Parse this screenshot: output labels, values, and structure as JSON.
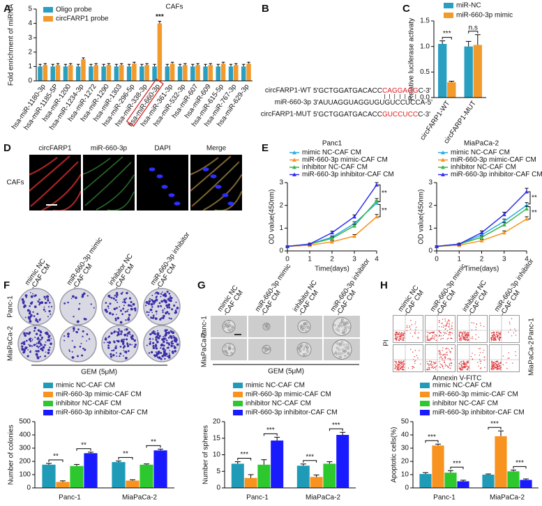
{
  "panel_labels": [
    "A",
    "B",
    "C",
    "D",
    "E",
    "F",
    "G",
    "H"
  ],
  "chart_data": [
    {
      "type": "bar",
      "title": "CAFs",
      "y_label": "Fold enrichment of miRNA",
      "categories": [
        "hsa-miR-1180-3p",
        "hsa-miR-1185-5P",
        "hsa-miR-1200",
        "hsa-miR-1234-3p",
        "hsa-miR-1272",
        "hsa-miR-1290",
        "hsa-miR-1303",
        "hsa-miR-296-5p",
        "hsa-miR-338-3p",
        "hsa-miR-660-3p",
        "hsa-miR-361-3p",
        "hsa-miR-532-3p",
        "hsa-miR-607",
        "hsa-miR-609",
        "hsa-miR-615-5p",
        "hsa-miR-767-3p",
        "hsa-miR-629-3p"
      ],
      "series": [
        {
          "name": "Oligo probe",
          "color": "#2a9fc0",
          "values": [
            1.0,
            1.0,
            1.0,
            1.0,
            1.0,
            1.0,
            1.0,
            1.0,
            1.0,
            1.0,
            1.0,
            1.0,
            1.0,
            1.0,
            1.0,
            1.0,
            1.0
          ],
          "errors": [
            0.15,
            0.15,
            0.15,
            0.15,
            0.15,
            0.15,
            0.15,
            0.15,
            0.15,
            0.15,
            0.15,
            0.15,
            0.15,
            0.15,
            0.15,
            0.15,
            0.15
          ]
        },
        {
          "name": "circFARP1 probe",
          "color": "#f39a2c",
          "values": [
            1.1,
            1.1,
            1.1,
            1.5,
            1.1,
            1.1,
            1.1,
            1.2,
            1.1,
            4.0,
            1.2,
            1.1,
            1.1,
            1.1,
            1.2,
            1.1,
            1.2
          ],
          "errors": [
            0.1,
            0.1,
            0.1,
            0.1,
            0.1,
            0.1,
            0.1,
            0.1,
            0.1,
            0.15,
            0.1,
            0.1,
            0.1,
            0.1,
            0.1,
            0.1,
            0.1
          ]
        }
      ],
      "ylim": [
        0,
        5
      ],
      "yticks": [
        0,
        1,
        2,
        3,
        4,
        5
      ],
      "annotations": [
        "***"
      ]
    },
    {
      "type": "bar",
      "y_label": "Relative luciferase activaty",
      "categories": [
        "circFARP1-WT",
        "circFARP1-MUT"
      ],
      "series": [
        {
          "name": "miR-NC",
          "color": "#2a9fc0",
          "values": [
            1.05,
            1.0
          ],
          "errors": [
            0.06,
            0.1
          ]
        },
        {
          "name": "miR-660-3p mimic",
          "color": "#f39a2c",
          "values": [
            0.3,
            1.03
          ],
          "errors": [
            0.02,
            0.2
          ]
        }
      ],
      "ylim": [
        0,
        1.5
      ],
      "yticks": [
        {
          "value": 0,
          "label": "0.0"
        },
        {
          "value": 0.5,
          "label": "0.5"
        },
        {
          "value": 1,
          "label": "1.0"
        },
        {
          "value": 1.5,
          "label": "1.5"
        }
      ],
      "annotations": [
        "***",
        "n.s"
      ]
    },
    {
      "type": "line",
      "title": "Panc1",
      "x_label": "Time(days)",
      "y_label": "OD value(450nm)",
      "x": [
        0,
        1,
        2,
        3,
        4
      ],
      "xlim": [
        0,
        4
      ],
      "xticks": [
        0,
        1,
        2,
        3,
        4
      ],
      "ylim": [
        0,
        3
      ],
      "yticks": [
        0,
        1,
        2,
        3
      ],
      "series": [
        {
          "name": "mimic NC-CAF CM",
          "color": "#29abe2",
          "values": [
            0.2,
            0.3,
            0.6,
            1.2,
            2.1
          ],
          "errors": [
            0.02,
            0.03,
            0.06,
            0.08,
            0.1
          ]
        },
        {
          "name": "miR-660-3p mimic-CAF CM",
          "color": "#f7931e",
          "values": [
            0.2,
            0.25,
            0.4,
            0.65,
            1.5
          ],
          "errors": [
            0.02,
            0.03,
            0.05,
            0.07,
            0.1
          ]
        },
        {
          "name": "inhibitor NC-CAF CM",
          "color": "#39b54a",
          "values": [
            0.2,
            0.3,
            0.55,
            1.1,
            2.2
          ],
          "errors": [
            0.02,
            0.03,
            0.06,
            0.08,
            0.1
          ]
        },
        {
          "name": "miR-660-3p inhibitor-CAF CM",
          "color": "#2d2df0",
          "values": [
            0.2,
            0.3,
            0.8,
            1.5,
            2.9
          ],
          "errors": [
            0.02,
            0.03,
            0.07,
            0.08,
            0.1
          ]
        }
      ],
      "annotations": [
        "**",
        "**"
      ]
    },
    {
      "type": "line",
      "title": "MiaPaCa-2",
      "x_label": "Time(days)",
      "y_label": "OD value(450nm)",
      "x": [
        0,
        1,
        2,
        3,
        4
      ],
      "xlim": [
        0,
        4
      ],
      "xticks": [
        0,
        1,
        2,
        3,
        4
      ],
      "ylim": [
        0,
        3
      ],
      "yticks": [
        0,
        1,
        2,
        3
      ],
      "series": [
        {
          "name": "mimic NC-CAF CM",
          "color": "#29abe2",
          "values": [
            0.2,
            0.3,
            0.7,
            1.3,
            2.0
          ],
          "errors": [
            0.02,
            0.03,
            0.07,
            0.1,
            0.12
          ]
        },
        {
          "name": "miR-660-3p mimic-CAF CM",
          "color": "#f7931e",
          "values": [
            0.2,
            0.25,
            0.45,
            0.8,
            1.4
          ],
          "errors": [
            0.02,
            0.03,
            0.05,
            0.08,
            0.1
          ]
        },
        {
          "name": "inhibitor NC-CAF CM",
          "color": "#39b54a",
          "values": [
            0.2,
            0.3,
            0.6,
            1.15,
            1.85
          ],
          "errors": [
            0.02,
            0.03,
            0.06,
            0.1,
            0.12
          ]
        },
        {
          "name": "miR-660-3p inhibitor-CAF CM",
          "color": "#2d2df0",
          "values": [
            0.2,
            0.3,
            0.8,
            1.6,
            2.6
          ],
          "errors": [
            0.02,
            0.03,
            0.08,
            0.1,
            0.15
          ]
        }
      ],
      "annotations": [
        "**",
        "**"
      ]
    },
    {
      "type": "bar",
      "y_label": "Number of colonies",
      "categories": [
        "Panc-1",
        "MiaPaCa-2"
      ],
      "series": [
        {
          "name": "mimic NC-CAF CM",
          "color": "#1f9bb8",
          "values": [
            175,
            195
          ],
          "errors": [
            10,
            8
          ]
        },
        {
          "name": "miR-660-3p mimic-CAF CM",
          "color": "#f7931e",
          "values": [
            45,
            55
          ],
          "errors": [
            8,
            6
          ]
        },
        {
          "name": "inhibitor NC-CAF CM",
          "color": "#2dc82d",
          "values": [
            165,
            175
          ],
          "errors": [
            12,
            6
          ]
        },
        {
          "name": "miR-660-3p inhibitor-CAF CM",
          "color": "#1a1aff",
          "values": [
            262,
            283
          ],
          "errors": [
            8,
            10
          ]
        }
      ],
      "ylim": [
        0,
        500
      ],
      "yticks": [
        0,
        100,
        200,
        300,
        400,
        500
      ],
      "annotations": [
        "**",
        "**",
        "**",
        "**"
      ]
    },
    {
      "type": "bar",
      "y_label": "Number of spheres",
      "categories": [
        "Panc-1",
        "MiaPaCa-2"
      ],
      "series": [
        {
          "name": "mimic NC-CAF CM",
          "color": "#1f9bb8",
          "values": [
            7.3,
            6.7
          ],
          "errors": [
            0.6,
            0.5
          ]
        },
        {
          "name": "miR-660-3p mimic-CAF CM",
          "color": "#f7931e",
          "values": [
            3,
            3.3
          ],
          "errors": [
            1,
            0.6
          ]
        },
        {
          "name": "inhibitor NC-CAF CM",
          "color": "#2dc82d",
          "values": [
            7,
            7.3
          ],
          "errors": [
            1.5,
            0.6
          ]
        },
        {
          "name": "miR-660-3p inhibitor-CAF CM",
          "color": "#1a1aff",
          "values": [
            14.3,
            16
          ],
          "errors": [
            1,
            0.8
          ]
        }
      ],
      "ylim": [
        0,
        20
      ],
      "yticks": [
        0,
        5,
        10,
        15,
        20
      ],
      "annotations": [
        "***",
        "***",
        "***",
        "***"
      ]
    },
    {
      "type": "bar",
      "y_label": "Apoptotic cells(%)",
      "categories": [
        "Panc-1",
        "MiaPaCa-2"
      ],
      "series": [
        {
          "name": "mimic NC-CAF CM",
          "color": "#1f9bb8",
          "values": [
            10.5,
            10
          ],
          "errors": [
            1,
            0.5
          ]
        },
        {
          "name": "miR-660-3p mimic-CAF CM",
          "color": "#f7931e",
          "values": [
            32,
            39
          ],
          "errors": [
            1,
            4
          ]
        },
        {
          "name": "inhibitor NC-CAF CM",
          "color": "#2dc82d",
          "values": [
            11.5,
            12.5
          ],
          "errors": [
            1.5,
            1
          ]
        },
        {
          "name": "miR-660-3p inhibitor-CAF CM",
          "color": "#1a1aff",
          "values": [
            5,
            6
          ],
          "errors": [
            0.8,
            0.8
          ]
        }
      ],
      "ylim": [
        0,
        50
      ],
      "yticks": [
        0,
        10,
        20,
        30,
        40,
        50
      ],
      "annotations": [
        "***",
        "***",
        "***",
        "***"
      ]
    }
  ],
  "sequences": [
    {
      "name": "circFARP1-WT",
      "seq": [
        "5'GCTGGATGACACC",
        "CAGGAGG",
        "C-3'"
      ]
    },
    {
      "name": "miR-660-3p",
      "seq": [
        "3'AUUAGGUAGGUGUGUCCUCCA-5'"
      ]
    },
    {
      "name": "circFARP1-MUT",
      "seq": [
        "5'GCTGGATGACACC",
        "GUCCUCC",
        "C-3'"
      ]
    }
  ],
  "microscopy": {
    "channels": [
      "circFARP1",
      "miR-660-3p",
      "DAPI",
      "Merge"
    ],
    "row": "CAFs"
  },
  "colony_assay": {
    "conditions": [
      [
        "mimic NC",
        "-CAF CM"
      ],
      [
        "miR-660-3p mimic",
        "-CAF CM"
      ],
      [
        "inhibitor NC",
        "-CAF CM"
      ],
      [
        "miR-660-3p inhibitor",
        "-CAF CM"
      ]
    ],
    "rows": [
      "Panc-1",
      "MiaPaCa-2"
    ],
    "caption": "GEM (5μM)"
  },
  "sphere_assay": {
    "conditions": [
      [
        "mimic NC",
        "-CAF CM"
      ],
      [
        "miR-660-3p mimic",
        "-CAF CM"
      ],
      [
        "inhibitor NC",
        "-CAF CM"
      ],
      [
        "miR-660-3p inhibitor",
        "-CAF CM"
      ]
    ],
    "rows": [
      "Panc-1",
      "MiaPaCa-2"
    ],
    "caption": "GEM (5μM)"
  },
  "flow_assay": {
    "conditions": [
      [
        "mimic NC",
        "-CAF CM"
      ],
      [
        "miR-660-3p mimic",
        "-CAF CM"
      ],
      [
        "inhibitor NC",
        "-CAF CM"
      ],
      [
        "miR-660-3p inhibitor",
        "-CAF CM"
      ]
    ],
    "rows": [
      "Panc-1",
      "MiaPaCa-2"
    ],
    "y_label": "PI",
    "x_label": "Annexin V-FITC"
  }
}
